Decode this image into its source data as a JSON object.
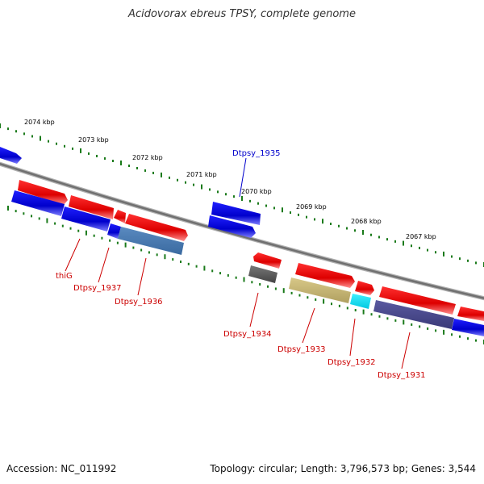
{
  "title": "Acidovorax ebreus TPSY, complete genome",
  "footer": {
    "accession": "Accession: NC_011992",
    "stats": "Topology: circular; Length: 3,796,573 bp; Genes: 3,544"
  },
  "scale": {
    "ticks": [
      "2074 kbp",
      "2073 kbp",
      "2072 kbp",
      "2071 kbp",
      "2070 kbp",
      "2069 kbp",
      "2068 kbp",
      "2067 kbp"
    ]
  },
  "genes": [
    {
      "label": "thiG",
      "color": "#cc0000"
    },
    {
      "label": "Dtpsy_1937",
      "color": "#cc0000"
    },
    {
      "label": "Dtpsy_1936",
      "color": "#cc0000"
    },
    {
      "label": "Dtpsy_1935",
      "color": "#0000cc"
    },
    {
      "label": "Dtpsy_1934",
      "color": "#cc0000"
    },
    {
      "label": "Dtpsy_1933",
      "color": "#cc0000"
    },
    {
      "label": "Dtpsy_1932",
      "color": "#cc0000"
    },
    {
      "label": "Dtpsy_1931",
      "color": "#cc0000"
    }
  ],
  "colors": {
    "cds_forward": "#ee0000",
    "cds_reverse": "#0000dd",
    "backbone": "#808080",
    "ticks": "#1a7a1a",
    "dots": "#1a7a1a",
    "feature_steelblue": "#4a7ab0",
    "feature_gray": "#666666",
    "feature_khaki": "#c8b870",
    "feature_cyan": "#00e0f0",
    "feature_slate": "#4a4a90"
  }
}
